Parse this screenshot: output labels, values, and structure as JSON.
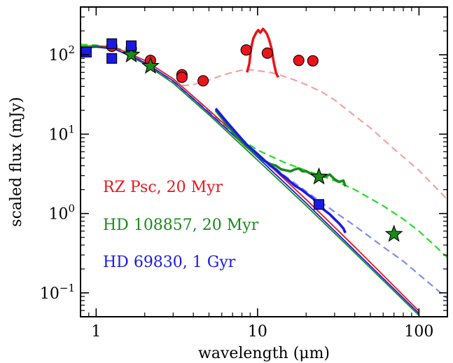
{
  "chart_data": {
    "type": "scatter",
    "xlabel": "wavelength (μm)",
    "ylabel": "scaled flux (mJy)",
    "xscale": "log",
    "yscale": "log",
    "xlim": [
      0.8,
      150
    ],
    "ylim": [
      0.05,
      400
    ],
    "xticks": [
      {
        "value": 1,
        "label": "1"
      },
      {
        "value": 10,
        "label": "10"
      },
      {
        "value": 100,
        "label": "100"
      }
    ],
    "yticks": [
      {
        "value": 0.1,
        "base": "10",
        "exp": "−1"
      },
      {
        "value": 1,
        "base": "10",
        "exp": "0"
      },
      {
        "value": 10,
        "base": "10",
        "exp": "1"
      },
      {
        "value": 100,
        "base": "10",
        "exp": "2"
      }
    ],
    "legend_placement": "lower-left",
    "series": [
      {
        "name": "RZ Psc, 20 Myr",
        "color": "#e8161b",
        "model_color": "#f4a39f",
        "photometry_marker": "circle",
        "photometry": [
          [
            1.25,
            128
          ],
          [
            1.65,
            120
          ],
          [
            2.17,
            85
          ],
          [
            3.4,
            56
          ],
          [
            3.4,
            52
          ],
          [
            4.6,
            47
          ],
          [
            8.5,
            115
          ],
          [
            11.5,
            105
          ],
          [
            18,
            85
          ],
          [
            22,
            84
          ]
        ],
        "spectrum": [
          [
            8.6,
            60
          ],
          [
            8.9,
            78
          ],
          [
            9.1,
            118
          ],
          [
            9.4,
            160
          ],
          [
            9.8,
            190
          ],
          [
            10.1,
            205
          ],
          [
            10.4,
            190
          ],
          [
            10.8,
            212
          ],
          [
            11.1,
            200
          ],
          [
            11.4,
            185
          ],
          [
            11.8,
            155
          ],
          [
            12.2,
            120
          ],
          [
            12.6,
            80
          ],
          [
            13.0,
            60
          ],
          [
            13.4,
            52
          ]
        ],
        "stellar_model": [
          [
            0.8,
            128
          ],
          [
            1.0,
            130
          ],
          [
            1.3,
            125
          ],
          [
            2.0,
            85
          ],
          [
            3.0,
            50
          ],
          [
            5.0,
            20
          ],
          [
            10,
            5.6
          ],
          [
            20,
            1.5
          ],
          [
            40,
            0.38
          ],
          [
            100,
            0.059
          ]
        ],
        "disk_model": [
          [
            0.8,
            135
          ],
          [
            1.0,
            132
          ],
          [
            1.5,
            115
          ],
          [
            2.0,
            80
          ],
          [
            2.5,
            58
          ],
          [
            3.0,
            45
          ],
          [
            3.5,
            41
          ],
          [
            4.0,
            42
          ],
          [
            5.0,
            48
          ],
          [
            6.0,
            55
          ],
          [
            7.0,
            60
          ],
          [
            8.0,
            64
          ],
          [
            9.0,
            65
          ],
          [
            10.0,
            63
          ],
          [
            12.0,
            60
          ],
          [
            14.0,
            55
          ],
          [
            17.0,
            48
          ],
          [
            20.0,
            42
          ],
          [
            25.0,
            34
          ],
          [
            30.0,
            27
          ],
          [
            40.0,
            17
          ],
          [
            50.0,
            12
          ],
          [
            70.0,
            6.5
          ],
          [
            100.0,
            3.5
          ],
          [
            150.0,
            1.5
          ]
        ]
      },
      {
        "name": "HD 108857, 20 Myr",
        "color": "#1a8a1a",
        "model_color": "#22e022",
        "photometry_marker": "star",
        "photometry": [
          [
            1.65,
            100
          ],
          [
            2.17,
            72
          ],
          [
            24,
            2.9
          ],
          [
            70,
            0.55
          ]
        ],
        "spectrum": [
          [
            5.5,
            20
          ],
          [
            6.5,
            13
          ],
          [
            7.5,
            9
          ],
          [
            8.5,
            7
          ],
          [
            10,
            5.4
          ],
          [
            11,
            4.6
          ],
          [
            12,
            4.2
          ],
          [
            13,
            4.0
          ],
          [
            14,
            3.6
          ],
          [
            15,
            3.5
          ],
          [
            16,
            3.4
          ],
          [
            17,
            3.6
          ],
          [
            18,
            3.7
          ],
          [
            19,
            3.4
          ],
          [
            20,
            3.4
          ],
          [
            22,
            3.1
          ],
          [
            24,
            3.0
          ],
          [
            26,
            2.9
          ],
          [
            28,
            3.1
          ],
          [
            30,
            2.7
          ],
          [
            32,
            2.5
          ],
          [
            34,
            2.6
          ],
          [
            35,
            2.2
          ]
        ],
        "stellar_model": [
          [
            0.8,
            128
          ],
          [
            1.0,
            128
          ],
          [
            1.3,
            120
          ],
          [
            2.0,
            77
          ],
          [
            3.0,
            44
          ],
          [
            5.0,
            17.5
          ],
          [
            10,
            4.7
          ],
          [
            20,
            1.25
          ],
          [
            40,
            0.32
          ],
          [
            100,
            0.052
          ]
        ],
        "disk_model": [
          [
            0.8,
            135
          ],
          [
            1.0,
            132
          ],
          [
            1.5,
            115
          ],
          [
            2.0,
            80
          ],
          [
            3.0,
            45
          ],
          [
            5.0,
            19
          ],
          [
            8.0,
            8.5
          ],
          [
            10,
            6.3
          ],
          [
            15,
            4.3
          ],
          [
            20,
            3.5
          ],
          [
            30,
            2.6
          ],
          [
            40,
            2.0
          ],
          [
            60,
            1.25
          ],
          [
            80,
            0.85
          ],
          [
            100,
            0.6
          ],
          [
            150,
            0.28
          ]
        ]
      },
      {
        "name": "HD 69830, 1 Gyr",
        "color": "#1a1ae6",
        "model_color": "#7f8cf0",
        "photometry_marker": "square",
        "photometry": [
          [
            0.87,
            108
          ],
          [
            1.25,
            138
          ],
          [
            1.25,
            90
          ],
          [
            1.65,
            130
          ],
          [
            24,
            1.3
          ]
        ],
        "spectrum": [
          [
            5.5,
            21
          ],
          [
            6.5,
            14
          ],
          [
            7.5,
            10
          ],
          [
            8.5,
            7.5
          ],
          [
            10,
            5.6
          ],
          [
            11,
            4.7
          ],
          [
            12,
            4.0
          ],
          [
            13,
            3.6
          ],
          [
            14,
            3.1
          ],
          [
            15,
            2.8
          ],
          [
            16,
            2.5
          ],
          [
            17,
            2.25
          ],
          [
            18,
            2.1
          ],
          [
            19,
            1.95
          ],
          [
            20,
            1.8
          ],
          [
            22,
            1.55
          ],
          [
            24,
            1.3
          ],
          [
            26,
            1.1
          ],
          [
            28,
            0.98
          ],
          [
            30,
            0.85
          ],
          [
            32,
            0.75
          ],
          [
            34,
            0.65
          ],
          [
            35,
            0.57
          ]
        ],
        "stellar_model": [
          [
            0.8,
            120
          ],
          [
            1.0,
            125
          ],
          [
            1.3,
            118
          ],
          [
            2.0,
            80
          ],
          [
            3.0,
            47
          ],
          [
            5.0,
            18.5
          ],
          [
            10,
            5.1
          ],
          [
            20,
            1.35
          ],
          [
            40,
            0.34
          ],
          [
            100,
            0.055
          ]
        ],
        "disk_model": [
          [
            0.8,
            125
          ],
          [
            1.0,
            127
          ],
          [
            1.5,
            112
          ],
          [
            2.0,
            80
          ],
          [
            3.0,
            46
          ],
          [
            5.0,
            19
          ],
          [
            8.0,
            8
          ],
          [
            10,
            5.6
          ],
          [
            15,
            2.9
          ],
          [
            20,
            1.9
          ],
          [
            30,
            1.05
          ],
          [
            40,
            0.7
          ],
          [
            60,
            0.38
          ],
          [
            80,
            0.25
          ],
          [
            100,
            0.17
          ],
          [
            150,
            0.085
          ]
        ]
      }
    ],
    "annotations": []
  }
}
